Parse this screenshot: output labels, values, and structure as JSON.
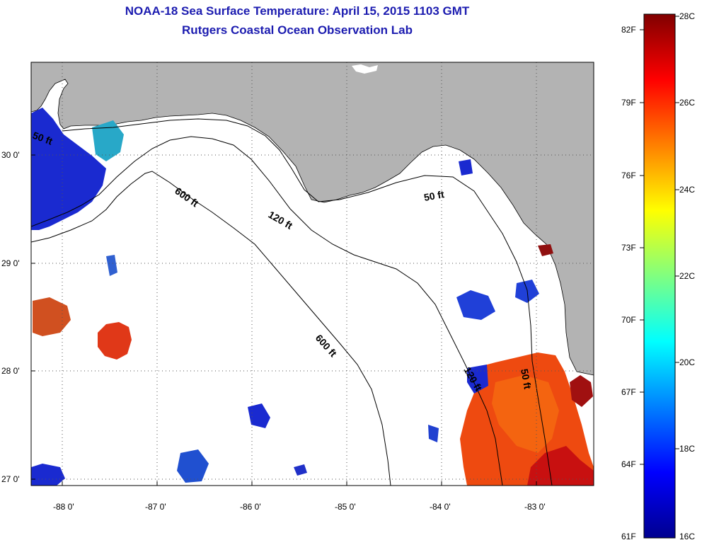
{
  "header": {
    "title": "NOAA-18 Sea Surface Temperature:  April 15, 2015 1103 GMT",
    "subtitle": "Rutgers Coastal Ocean Observation Lab"
  },
  "axes": {
    "lon_ticks": [
      "-88 0'",
      "-87 0'",
      "-86 0'",
      "-85 0'",
      "-84 0'",
      "-83 0'"
    ],
    "lat_ticks": [
      "30 0'",
      "29 0'",
      "28 0'",
      "27 0'"
    ],
    "lon_range": [
      -88.35,
      -82.4
    ],
    "lat_range": [
      26.93,
      30.85
    ]
  },
  "contours": [
    {
      "label": "600 ft"
    },
    {
      "label": "120 ft"
    },
    {
      "label": "50 ft"
    },
    {
      "label": "600 ft"
    },
    {
      "label": "120 ft"
    },
    {
      "label": "50 ft"
    },
    {
      "label": "50 ft"
    }
  ],
  "colorbar": {
    "fahrenheit": [
      "82F",
      "79F",
      "76F",
      "73F",
      "70F",
      "67F",
      "64F",
      "61F"
    ],
    "celsius": [
      "28C",
      "26C",
      "24C",
      "22C",
      "20C",
      "18C",
      "16C"
    ],
    "range_c": [
      16,
      28
    ]
  },
  "colors": {
    "land": "#b3b3b3",
    "ocean": "#ffffff",
    "title": "#1c1cb0",
    "warm_sst": "#ee4a10",
    "cool_sst": "#1a2ad0"
  }
}
